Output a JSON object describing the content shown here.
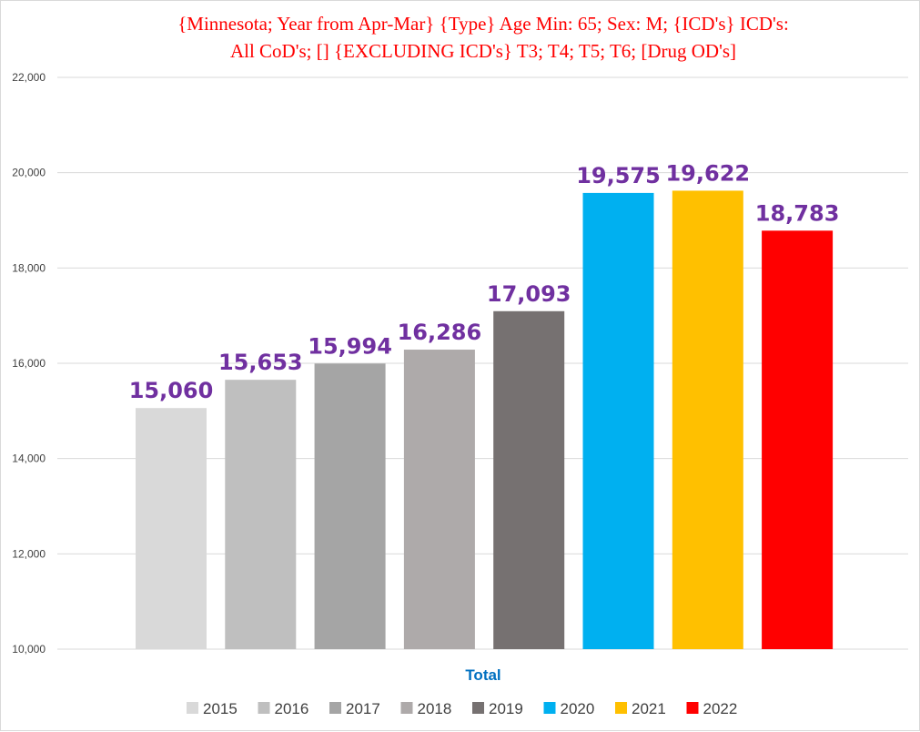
{
  "chart_data": {
    "type": "bar",
    "title": "{Minnesota; Year from Apr-Mar}  {Type} Age Min: 65; Sex: M;  {ICD's} ICD's:\nAll CoD's;  [] {EXCLUDING ICD's} T3; T4; T5; T6; [Drug OD's]",
    "xlabel": "Total",
    "ylabel": "",
    "ylim": [
      10000,
      22000
    ],
    "yticks": [
      10000,
      12000,
      14000,
      16000,
      18000,
      20000,
      22000
    ],
    "ytick_labels": [
      "10,000",
      "12,000",
      "14,000",
      "16,000",
      "18,000",
      "20,000",
      "22,000"
    ],
    "grid": true,
    "legend_position": "bottom",
    "categories": [
      "Total"
    ],
    "series": [
      {
        "name": "2015",
        "values": [
          15060
        ],
        "label": "15,060",
        "color": "#d9d9d9"
      },
      {
        "name": "2016",
        "values": [
          15653
        ],
        "label": "15,653",
        "color": "#bfbfbf"
      },
      {
        "name": "2017",
        "values": [
          15994
        ],
        "label": "15,994",
        "color": "#a5a5a5"
      },
      {
        "name": "2018",
        "values": [
          16286
        ],
        "label": "16,286",
        "color": "#aeaaaa"
      },
      {
        "name": "2019",
        "values": [
          17093
        ],
        "label": "17,093",
        "color": "#767171"
      },
      {
        "name": "2020",
        "values": [
          19575
        ],
        "label": "19,575",
        "color": "#00b0f0"
      },
      {
        "name": "2021",
        "values": [
          19622
        ],
        "label": "19,622",
        "color": "#ffc000"
      },
      {
        "name": "2022",
        "values": [
          18783
        ],
        "label": "18,783",
        "color": "#ff0000"
      }
    ],
    "colors": {
      "title": "#ff0000",
      "data_label": "#7030a0",
      "axis_title": "#0070c0",
      "gridline": "#d9d9d9"
    }
  }
}
